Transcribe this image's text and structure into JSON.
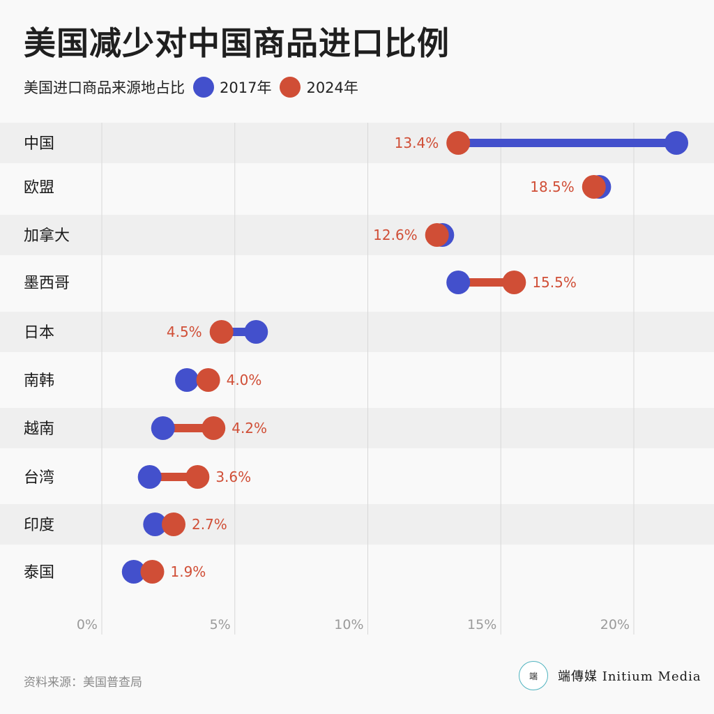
{
  "title": "美国减少对中国商品进口比例",
  "legend": {
    "label": "美国进口商品来源地占比",
    "series_2017": "2017年",
    "series_2024": "2024年"
  },
  "colors": {
    "series_2017": "#4350cc",
    "series_2024": "#d04e36",
    "band": "#efefef",
    "grid": "#d8d8d8",
    "tick": "#9a9a9a"
  },
  "source": "资料来源：美国普查局",
  "brand": {
    "logo_text": "端",
    "name": "端傳媒 Initium Media"
  },
  "chart_data": {
    "type": "dumbbell",
    "title": "美国减少对中国商品进口比例",
    "categories": [
      "中国",
      "欧盟",
      "加拿大",
      "墨西哥",
      "日本",
      "南韩",
      "越南",
      "台湾",
      "印度",
      "泰国"
    ],
    "series": [
      {
        "name": "2017年",
        "values": [
          21.6,
          18.7,
          12.8,
          13.4,
          5.8,
          3.2,
          2.3,
          1.8,
          2.0,
          1.2
        ]
      },
      {
        "name": "2024年",
        "values": [
          13.4,
          18.5,
          12.6,
          15.5,
          4.5,
          4.0,
          4.2,
          3.6,
          2.7,
          1.9
        ]
      }
    ],
    "labels": [
      "13.4%",
      "18.5%",
      "12.6%",
      "15.5%",
      "4.5%",
      "4.0%",
      "4.2%",
      "3.6%",
      "2.7%",
      "1.9%"
    ],
    "xaxis": {
      "ticks": [
        "0%",
        "5%",
        "10%",
        "15%",
        "20%"
      ],
      "tick_values": [
        0,
        5,
        10,
        15,
        20
      ],
      "range": [
        0,
        22.6
      ]
    },
    "grid": true,
    "band_stripes": [
      true,
      false,
      true,
      false,
      true,
      false,
      true,
      false,
      true,
      false
    ]
  }
}
